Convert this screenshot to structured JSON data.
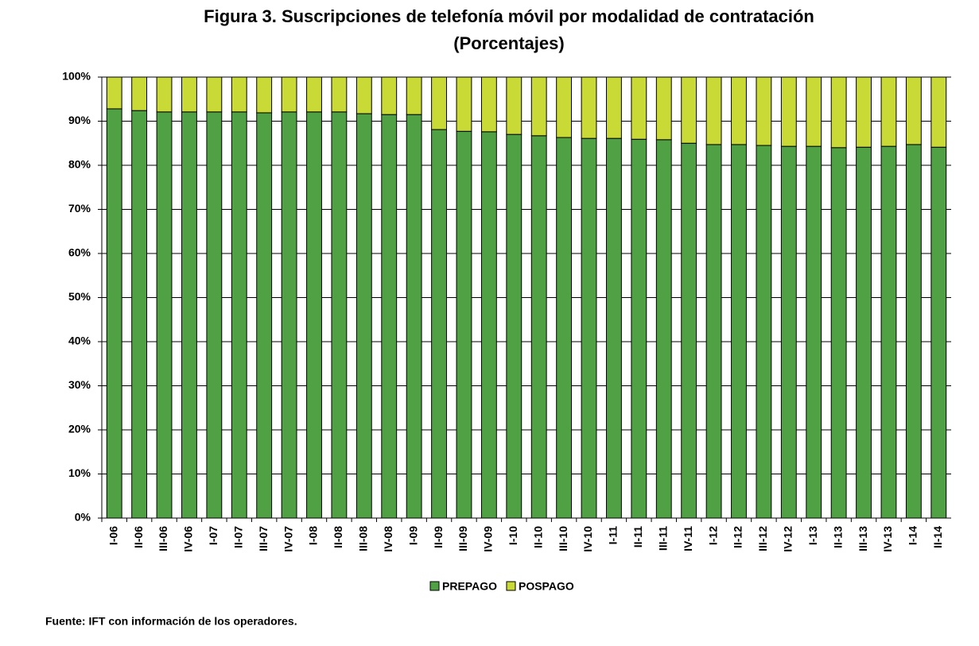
{
  "chart_data": {
    "type": "stacked_bar",
    "title": "Figura 3. Suscripciones de telefonía móvil por modalidad de contratación",
    "subtitle": "(Porcentajes)",
    "source": "Fuente: IFT con información de los operadores.",
    "categories": [
      "I-06",
      "II-06",
      "III-06",
      "IV-06",
      "I-07",
      "II-07",
      "III-07",
      "IV-07",
      "I-08",
      "II-08",
      "III-08",
      "IV-08",
      "I-09",
      "II-09",
      "III-09",
      "IV-09",
      "I-10",
      "II-10",
      "III-10",
      "IV-10",
      "I-11",
      "II-11",
      "III-11",
      "IV-11",
      "I-12",
      "II-12",
      "III-12",
      "IV-12",
      "I-13",
      "II-13",
      "III-13",
      "IV-13",
      "I-14",
      "II-14"
    ],
    "series": [
      {
        "name": "PREPAGO",
        "color": "#50a044",
        "values": [
          92.8,
          92.4,
          92.1,
          92.1,
          92.1,
          92.1,
          91.9,
          92.1,
          92.1,
          92.1,
          91.7,
          91.5,
          91.5,
          88.1,
          87.7,
          87.6,
          87.0,
          86.7,
          86.3,
          86.1,
          86.1,
          85.9,
          85.8,
          85.0,
          84.7,
          84.7,
          84.5,
          84.3,
          84.3,
          84.0,
          84.1,
          84.3,
          84.7,
          84.1
        ]
      },
      {
        "name": "POSPAGO",
        "color": "#c9d936",
        "values": [
          7.2,
          7.6,
          7.9,
          7.9,
          7.9,
          7.9,
          8.1,
          7.9,
          7.9,
          7.9,
          8.3,
          8.5,
          8.5,
          11.9,
          12.3,
          12.4,
          13.0,
          13.3,
          13.7,
          13.9,
          13.9,
          14.1,
          14.2,
          15.0,
          15.3,
          15.3,
          15.5,
          15.7,
          15.7,
          16.0,
          15.9,
          15.7,
          15.3,
          15.9
        ]
      }
    ],
    "ylim": [
      0,
      100
    ],
    "yticks": [
      {
        "value": 0,
        "label": "0%"
      },
      {
        "value": 10,
        "label": "10%"
      },
      {
        "value": 20,
        "label": "20%"
      },
      {
        "value": 30,
        "label": "30%"
      },
      {
        "value": 40,
        "label": "40%"
      },
      {
        "value": 50,
        "label": "50%"
      },
      {
        "value": 60,
        "label": "60%"
      },
      {
        "value": 70,
        "label": "70%"
      },
      {
        "value": 80,
        "label": "80%"
      },
      {
        "value": 90,
        "label": "90%"
      },
      {
        "value": 100,
        "label": "100%"
      }
    ],
    "grid": true
  }
}
